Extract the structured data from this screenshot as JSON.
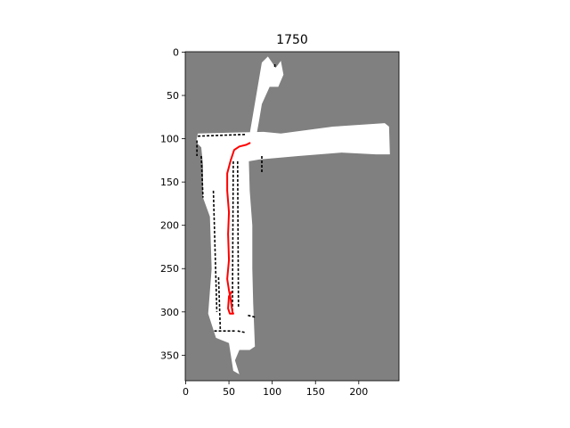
{
  "chart_data": {
    "type": "heatmap",
    "title": "1750",
    "xlabel": "",
    "ylabel": "",
    "xlim": [
      -0.5,
      246.5
    ],
    "ylim": [
      379.5,
      -0.5
    ],
    "x_ticks": [
      0,
      50,
      100,
      150,
      200
    ],
    "y_ticks": [
      0,
      50,
      100,
      150,
      200,
      250,
      300,
      350
    ],
    "grid": false,
    "colors": {
      "unknown": "#808080",
      "free": "#ffffff",
      "occupied": "#000000",
      "trajectory": "#ff0000"
    },
    "free_regions": [
      [
        [
          72,
          106
        ],
        [
          88,
          12
        ],
        [
          95,
          5
        ],
        [
          104,
          18
        ],
        [
          110,
          10
        ],
        [
          113,
          26
        ],
        [
          107,
          40
        ],
        [
          97,
          40
        ],
        [
          88,
          60
        ],
        [
          85,
          78
        ],
        [
          80,
          106
        ]
      ],
      [
        [
          14,
          94
        ],
        [
          90,
          92
        ],
        [
          110,
          94
        ],
        [
          170,
          86
        ],
        [
          230,
          82
        ],
        [
          235,
          86
        ],
        [
          236,
          118
        ],
        [
          220,
          118
        ],
        [
          180,
          116
        ],
        [
          130,
          120
        ],
        [
          85,
          124
        ],
        [
          73,
          126
        ],
        [
          74,
          160
        ],
        [
          77,
          200
        ],
        [
          77,
          250
        ],
        [
          78,
          290
        ],
        [
          80,
          340
        ],
        [
          74,
          344
        ],
        [
          62,
          344
        ],
        [
          57,
          356
        ],
        [
          62,
          372
        ],
        [
          55,
          368
        ],
        [
          50,
          336
        ],
        [
          35,
          330
        ],
        [
          26,
          302
        ],
        [
          30,
          250
        ],
        [
          28,
          190
        ],
        [
          20,
          168
        ],
        [
          20,
          130
        ],
        [
          18,
          110
        ],
        [
          12,
          104
        ]
      ]
    ],
    "occupied_edges": [
      [
        [
          14,
          97
        ],
        [
          70,
          95
        ]
      ],
      [
        [
          13,
          102
        ],
        [
          13,
          120
        ]
      ],
      [
        [
          18,
          120
        ],
        [
          20,
          168
        ]
      ],
      [
        [
          32,
          160
        ],
        [
          36,
          300
        ]
      ],
      [
        [
          38,
          260
        ],
        [
          40,
          320
        ]
      ],
      [
        [
          33,
          322
        ],
        [
          58,
          322
        ]
      ],
      [
        [
          60,
          322
        ],
        [
          70,
          324
        ]
      ],
      [
        [
          72,
          304
        ],
        [
          80,
          306
        ]
      ],
      [
        [
          88,
          120
        ],
        [
          88,
          140
        ]
      ],
      [
        [
          103,
          14
        ],
        [
          103,
          18
        ]
      ],
      [
        [
          55,
          126
        ],
        [
          54,
          300
        ]
      ],
      [
        [
          60,
          126
        ],
        [
          61,
          296
        ]
      ]
    ],
    "trajectory": [
      [
        74,
        105
      ],
      [
        70,
        107
      ],
      [
        62,
        109
      ],
      [
        56,
        113
      ],
      [
        52,
        125
      ],
      [
        48,
        140
      ],
      [
        48,
        160
      ],
      [
        50,
        185
      ],
      [
        49,
        210
      ],
      [
        50,
        240
      ],
      [
        48,
        262
      ],
      [
        50,
        275
      ],
      [
        52,
        285
      ],
      [
        53,
        293
      ],
      [
        54,
        300
      ],
      [
        55,
        302
      ],
      [
        51,
        302
      ],
      [
        49,
        296
      ],
      [
        50,
        282
      ],
      [
        53,
        277
      ]
    ]
  }
}
